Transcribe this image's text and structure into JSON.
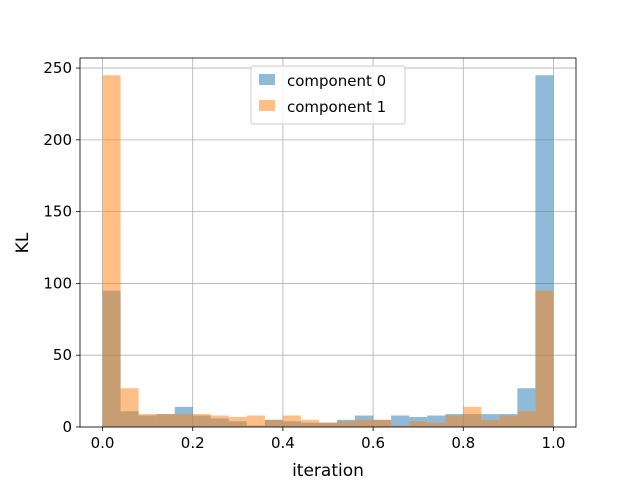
{
  "chart_data": {
    "type": "bar",
    "xlabel": "iteration",
    "ylabel": "KL",
    "xlim": [
      -0.05,
      1.05
    ],
    "ylim": [
      0,
      257
    ],
    "xticks": [
      0.0,
      0.2,
      0.4,
      0.6,
      0.8,
      1.0
    ],
    "xtick_labels": [
      "0.0",
      "0.2",
      "0.4",
      "0.6",
      "0.8",
      "1.0"
    ],
    "yticks": [
      0,
      50,
      100,
      150,
      200,
      250
    ],
    "ytick_labels": [
      "0",
      "50",
      "100",
      "150",
      "200",
      "250"
    ],
    "grid": true,
    "legend_position": "top-center",
    "bin_edges": [
      0.0,
      0.04,
      0.08,
      0.12,
      0.16,
      0.2,
      0.24,
      0.28,
      0.32,
      0.36,
      0.4,
      0.44,
      0.48,
      0.52,
      0.56,
      0.6,
      0.64,
      0.68,
      0.72,
      0.76,
      0.8,
      0.84,
      0.88,
      0.92,
      0.96,
      1.0
    ],
    "series": [
      {
        "name": "component 0",
        "color": "#1f77b4",
        "values": [
          95,
          11,
          8,
          9,
          14,
          8,
          6,
          4,
          1,
          5,
          4,
          3,
          3,
          5,
          8,
          5,
          8,
          7,
          8,
          9,
          9,
          9,
          9,
          27,
          245
        ]
      },
      {
        "name": "component 1",
        "color": "#ff7f0e",
        "values": [
          245,
          27,
          9,
          9,
          9,
          9,
          8,
          7,
          8,
          5,
          8,
          5,
          3,
          4,
          5,
          5,
          1,
          4,
          3,
          8,
          14,
          5,
          8,
          11,
          95
        ]
      }
    ]
  }
}
